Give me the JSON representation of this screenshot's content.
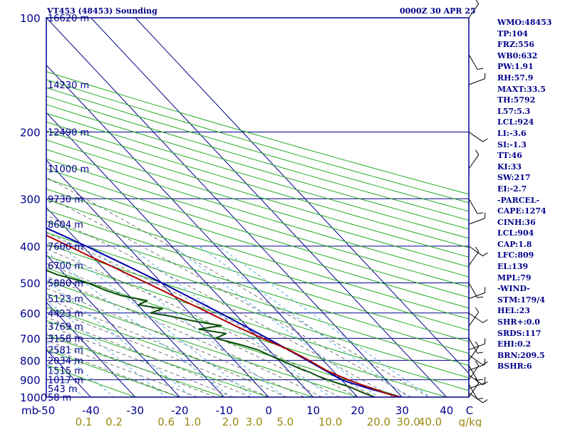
{
  "header": {
    "station": "VT453 (48453) Sounding",
    "time": "0000Z 30 APR 25"
  },
  "indices": [
    "WMO:48453",
    "TP:104",
    "FRZ:556",
    "WB0:632",
    "PW:1.91",
    "RH:57.9",
    "MAXT:33.5",
    "TH:5792",
    "L57:5.3",
    "LCL:924",
    "LI:-3.6",
    "SI:-1.3",
    "TT:46",
    "KI:33",
    "SW:217",
    "EI:-2.7",
    "-PARCEL-",
    "CAPE:1274",
    "CINH:36",
    "LCL:904",
    "CAP:1.8",
    "LFC:809",
    "EL:139",
    "MPL:79",
    "-WIND-",
    "STM:179/4",
    "HEL:23",
    "SHR+:0.0",
    "SRDS:117",
    "EHI:0.2",
    "BRN:209.5",
    "BSHR:6"
  ],
  "colors": {
    "frame": "#00008b",
    "isobar": "#00008b",
    "isotherm": "#00008b",
    "dry_adiabat": "#22aa22",
    "moist_adiabat": "#555555",
    "mixing_ratio": "#4fa8e0",
    "temperature": "#b00000",
    "dewpoint": "#0b4d0b",
    "parcel": "#0000b0",
    "wind_barb": "#000000",
    "mixing_label": "#9a8a10"
  },
  "chart_data": {
    "type": "line",
    "title": "VT453 (48453) Sounding",
    "subtitle": "0000Z 30 APR 25",
    "xlabel": "",
    "ylabel": "mb",
    "pressure_ticks": [
      100,
      200,
      300,
      400,
      500,
      600,
      700,
      800,
      900,
      1000
    ],
    "pressure_range": [
      100,
      1000
    ],
    "temp_ticks": [
      "-50",
      "-40",
      "-30",
      "-20",
      "-10",
      "0",
      "10",
      "20",
      "30",
      "40",
      "C"
    ],
    "temp_range": [
      -50,
      45
    ],
    "mixing_ratio_labels": [
      "0.1",
      "0.2",
      "0.6",
      "1.0",
      "2.0",
      "3.0",
      "5.0",
      "10.0",
      "20.0",
      "30.0",
      "40.0",
      "g/kg"
    ],
    "mixing_ratio_values": [
      0.1,
      0.2,
      0.6,
      1.0,
      2.0,
      3.0,
      5.0,
      10.0,
      20.0,
      30.0,
      40.0
    ],
    "mixing_ratio_unit": "g/kg",
    "height_labels": [
      {
        "p": 100,
        "label": "16620 m"
      },
      {
        "p": 150,
        "label": "14230 m"
      },
      {
        "p": 200,
        "label": "12490 m"
      },
      {
        "p": 250,
        "label": "11000 m"
      },
      {
        "p": 300,
        "label": "9730 m"
      },
      {
        "p": 350,
        "label": "8604 m"
      },
      {
        "p": 400,
        "label": "7600 m"
      },
      {
        "p": 450,
        "label": "6700 m"
      },
      {
        "p": 500,
        "label": "5880 m"
      },
      {
        "p": 550,
        "label": "5123 m"
      },
      {
        "p": 600,
        "label": "4423 m"
      },
      {
        "p": 650,
        "label": "3769 m"
      },
      {
        "p": 700,
        "label": "3158 m"
      },
      {
        "p": 750,
        "label": "2581 m"
      },
      {
        "p": 800,
        "label": "2034 m"
      },
      {
        "p": 850,
        "label": "1515 m"
      },
      {
        "p": 900,
        "label": "1017 m"
      },
      {
        "p": 950,
        "label": "543 m"
      },
      {
        "p": 1000,
        "label": "58 m"
      }
    ],
    "series": [
      {
        "key": "temperature",
        "points": [
          [
            1004,
            30.0
          ],
          [
            990,
            28.4
          ],
          [
            975,
            27.0
          ],
          [
            950,
            25.2
          ],
          [
            925,
            23.3
          ],
          [
            900,
            21.5
          ],
          [
            875,
            20.0
          ],
          [
            850,
            18.6
          ],
          [
            825,
            17.7
          ],
          [
            800,
            16.8
          ],
          [
            775,
            15.7
          ],
          [
            750,
            14.5
          ],
          [
            725,
            12.8
          ],
          [
            700,
            11.0
          ],
          [
            675,
            9.3
          ],
          [
            650,
            7.6
          ],
          [
            625,
            6.0
          ],
          [
            600,
            4.4
          ],
          [
            575,
            2.6
          ],
          [
            550,
            0.6
          ],
          [
            525,
            -1.3
          ],
          [
            500,
            -3.3
          ],
          [
            475,
            -5.6
          ],
          [
            450,
            -7.9
          ],
          [
            425,
            -10.6
          ],
          [
            400,
            -13.1
          ],
          [
            375,
            -15.8
          ],
          [
            350,
            -18.5
          ],
          [
            325,
            -21.7
          ],
          [
            300,
            -25.3
          ],
          [
            275,
            -29.8
          ],
          [
            250,
            -34.2
          ],
          [
            225,
            -38.9
          ],
          [
            200,
            -44.0
          ],
          [
            175,
            -49.8
          ],
          [
            150,
            -55.9
          ],
          [
            140,
            -59.1
          ],
          [
            125,
            -63.3
          ],
          [
            115,
            -68.0
          ],
          [
            104,
            -73.8
          ],
          [
            100,
            -72.3
          ]
        ]
      },
      {
        "key": "dewpoint",
        "points": [
          [
            1004,
            24.0
          ],
          [
            990,
            23.2
          ],
          [
            975,
            22.2
          ],
          [
            950,
            20.9
          ],
          [
            935,
            20.0
          ],
          [
            925,
            19.0
          ],
          [
            915,
            18.1
          ],
          [
            900,
            16.9
          ],
          [
            880,
            15.5
          ],
          [
            860,
            14.5
          ],
          [
            850,
            13.6
          ],
          [
            825,
            12.0
          ],
          [
            800,
            10.5
          ],
          [
            775,
            9.0
          ],
          [
            750,
            7.5
          ],
          [
            730,
            5.1
          ],
          [
            700,
            0.5
          ],
          [
            680,
            3.8
          ],
          [
            662,
            -1.4
          ],
          [
            648,
            4.4
          ],
          [
            630,
            -0.9
          ],
          [
            612,
            -5.0
          ],
          [
            600,
            -8.8
          ],
          [
            585,
            -5.3
          ],
          [
            571,
            -9.8
          ],
          [
            557,
            -7.0
          ],
          [
            540,
            -11.7
          ],
          [
            522,
            -14.3
          ],
          [
            500,
            -16.6
          ],
          [
            475,
            -21.8
          ],
          [
            450,
            -24.9
          ],
          [
            425,
            -27.8
          ],
          [
            400,
            -30.9
          ],
          [
            390,
            -28.3
          ],
          [
            375,
            -31.6
          ],
          [
            350,
            -26.0
          ],
          [
            338,
            -19.8
          ],
          [
            330,
            -35.0
          ],
          [
            300,
            -41.1
          ],
          [
            275,
            -47.0
          ],
          [
            258,
            -51.6
          ],
          [
            252,
            -57.1
          ],
          [
            240,
            -56.0
          ],
          [
            225,
            -58.1
          ],
          [
            210,
            -63.2
          ],
          [
            200,
            -64.0
          ],
          [
            190,
            -68.7
          ],
          [
            175,
            -69.4
          ],
          [
            160,
            -74.3
          ],
          [
            150,
            -78.7
          ],
          [
            140,
            -79.6
          ],
          [
            125,
            -83.6
          ],
          [
            110,
            -85.0
          ],
          [
            100,
            -85.8
          ]
        ]
      },
      {
        "key": "parcel",
        "points": [
          [
            1004,
            30.0
          ],
          [
            950,
            24.4
          ],
          [
            904,
            20.2
          ],
          [
            880,
            19.3
          ],
          [
            850,
            18.3
          ],
          [
            800,
            16.4
          ],
          [
            750,
            14.4
          ],
          [
            700,
            12.1
          ],
          [
            650,
            9.6
          ],
          [
            600,
            6.8
          ],
          [
            550,
            3.6
          ],
          [
            500,
            0.1
          ],
          [
            450,
            -4.2
          ],
          [
            400,
            -9.2
          ],
          [
            350,
            -15.4
          ],
          [
            300,
            -23.2
          ],
          [
            250,
            -33.0
          ],
          [
            200,
            -45.2
          ],
          [
            175,
            -52.5
          ],
          [
            150,
            -60.5
          ],
          [
            139,
            -64.6
          ],
          [
            125,
            -69.5
          ],
          [
            110,
            -75.0
          ],
          [
            100,
            -79.0
          ]
        ]
      }
    ],
    "wind_levels_mb": [
      1000,
      975,
      950,
      925,
      900,
      875,
      850,
      825,
      800,
      775,
      750,
      700,
      650,
      600,
      550,
      500,
      450,
      400,
      350,
      300,
      250,
      200,
      150,
      125,
      100
    ]
  }
}
